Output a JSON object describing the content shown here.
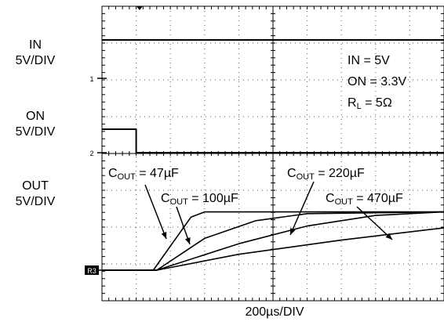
{
  "chart_data": {
    "type": "line",
    "channels": [
      {
        "name": "IN",
        "scale": "5V/DIV"
      },
      {
        "name": "ON",
        "scale": "5V/DIV"
      },
      {
        "name": "OUT",
        "scale": "5V/DIV"
      }
    ],
    "x_axis_label": "200µs/DIV",
    "ground_markers": [
      "1",
      "2",
      "R3"
    ],
    "conditions": [
      {
        "text": "IN = 5V"
      },
      {
        "text": "ON = 3.3V"
      },
      {
        "main": "R",
        "sub": "L",
        "rest": " = 5Ω"
      }
    ],
    "x_divisions": 10,
    "y_divisions": 8,
    "grid": true,
    "series": [
      {
        "name": "IN",
        "x_div": [
          0,
          10
        ],
        "y_volts": [
          5,
          5
        ]
      },
      {
        "name": "ON",
        "x_div": [
          0,
          1,
          1,
          10
        ],
        "y_volts": [
          3.3,
          3.3,
          0,
          0
        ]
      },
      {
        "name": "OUT C = 47µF",
        "x_div": [
          0,
          1.5,
          2.6,
          3.0,
          10
        ],
        "y_volts": [
          0,
          0,
          3.0,
          3.3,
          3.3
        ]
      },
      {
        "name": "OUT C = 100µF",
        "x_div": [
          0,
          1.6,
          3.0,
          4.5,
          6.0,
          10
        ],
        "y_volts": [
          0,
          0,
          1.8,
          2.8,
          3.2,
          3.3
        ]
      },
      {
        "name": "OUT C = 220µF",
        "x_div": [
          0,
          1.6,
          4.0,
          6.0,
          8.0,
          10
        ],
        "y_volts": [
          0,
          0,
          1.5,
          2.5,
          3.1,
          3.3
        ]
      },
      {
        "name": "OUT C = 470µF",
        "x_div": [
          0,
          1.6,
          4.0,
          7.0,
          10
        ],
        "y_volts": [
          0,
          0,
          0.9,
          1.7,
          2.4
        ]
      }
    ],
    "annotations": [
      {
        "main": "C",
        "sub": "OUT",
        "rest": " = 47µF"
      },
      {
        "main": "C",
        "sub": "OUT",
        "rest": " = 100µF"
      },
      {
        "main": "C",
        "sub": "OUT",
        "rest": " = 220µF"
      },
      {
        "main": "C",
        "sub": "OUT",
        "rest": " = 470µF"
      }
    ]
  }
}
